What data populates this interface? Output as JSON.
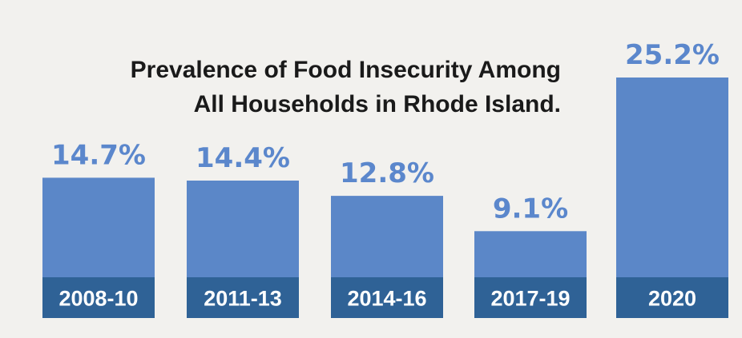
{
  "chart_data": {
    "type": "bar",
    "title_lines": [
      "Prevalence of Food Insecurity Among",
      "All Households in Rhode Island."
    ],
    "categories": [
      "2008-10",
      "2011-13",
      "2014-16",
      "2017-19",
      "2020"
    ],
    "values": [
      14.7,
      14.4,
      12.8,
      9.1,
      25.2
    ],
    "value_labels": [
      "14.7%",
      "14.4%",
      "12.8%",
      "9.1%",
      "25.2%"
    ],
    "ylim": [
      0,
      25.2
    ],
    "grid": false,
    "legend": "none",
    "bar_color": "#5b87c8",
    "category_band_color": "#2f6296",
    "value_label_color": "#5b87cc"
  }
}
